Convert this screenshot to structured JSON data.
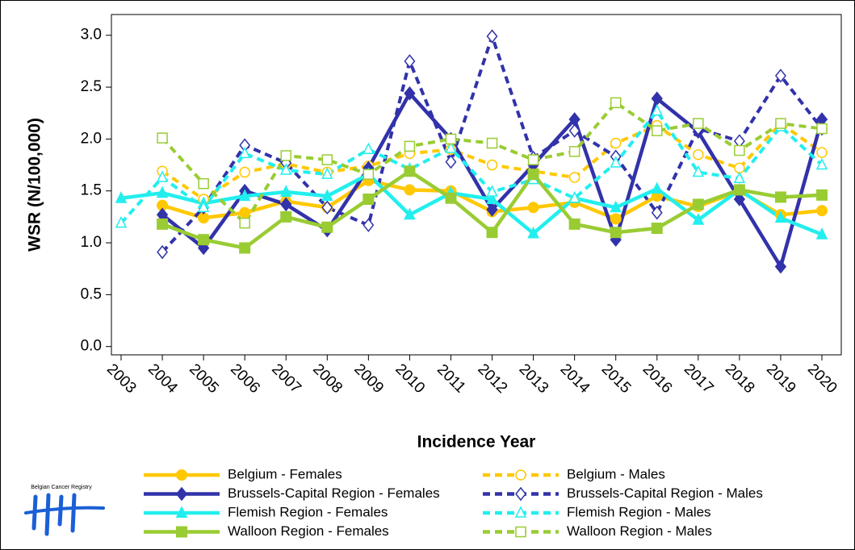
{
  "chart_data": {
    "type": "line",
    "xlabel": "Incidence Year",
    "ylabel": "WSR (N/100,000)",
    "logo_text": "Belgian Cancer Registry",
    "categories": [
      "2003",
      "2004",
      "2005",
      "2006",
      "2007",
      "2008",
      "2009",
      "2010",
      "2011",
      "2012",
      "2013",
      "2014",
      "2015",
      "2016",
      "2017",
      "2018",
      "2019",
      "2020"
    ],
    "ylim": [
      -0.08,
      3.2
    ],
    "yticks": [
      {
        "value": 0,
        "label": "0.0"
      },
      0.5,
      {
        "value": 1,
        "label": "1.0"
      },
      1.5,
      {
        "value": 2,
        "label": "2.0"
      },
      2.5,
      {
        "value": 3,
        "label": "3.0"
      }
    ],
    "grid": false,
    "series": [
      {
        "name": "Belgium - Females",
        "color": "#ffc800",
        "marker": "circle",
        "dashed": false,
        "values": [
          null,
          1.36,
          1.24,
          1.29,
          1.4,
          1.34,
          1.6,
          1.51,
          1.5,
          1.3,
          1.34,
          1.39,
          1.23,
          1.45,
          1.35,
          1.5,
          1.27,
          1.31
        ]
      },
      {
        "name": "Belgium - Males",
        "color": "#ffc800",
        "marker": "circle",
        "dashed": true,
        "values": [
          null,
          1.69,
          1.42,
          1.68,
          1.76,
          1.68,
          1.74,
          1.86,
          1.9,
          1.75,
          1.69,
          1.63,
          1.96,
          2.13,
          1.85,
          1.72,
          2.15,
          1.87
        ]
      },
      {
        "name": "Brussels-Capital Region - Females",
        "color": "#3232aa",
        "marker": "diamond",
        "dashed": false,
        "values": [
          null,
          1.27,
          0.95,
          1.5,
          1.37,
          1.12,
          1.72,
          2.44,
          2.0,
          1.32,
          1.75,
          2.19,
          1.03,
          2.39,
          2.07,
          1.42,
          0.77,
          2.19
        ]
      },
      {
        "name": "Brussels-Capital Region - Males",
        "color": "#3232aa",
        "marker": "diamond",
        "dashed": true,
        "values": [
          null,
          0.91,
          1.34,
          1.94,
          1.77,
          1.34,
          1.17,
          2.75,
          1.78,
          2.99,
          1.82,
          2.08,
          1.83,
          1.29,
          2.1,
          1.98,
          2.61,
          2.1
        ]
      },
      {
        "name": "Flemish Region - Females",
        "color": "#22eeee",
        "marker": "triangle",
        "dashed": false,
        "values": [
          1.43,
          1.48,
          1.38,
          1.45,
          1.49,
          1.45,
          1.66,
          1.27,
          1.48,
          1.42,
          1.09,
          1.43,
          1.34,
          1.52,
          1.22,
          1.51,
          1.24,
          1.08
        ]
      },
      {
        "name": "Flemish Region - Males",
        "color": "#22eeee",
        "marker": "triangle",
        "dashed": true,
        "values": [
          1.19,
          1.63,
          1.34,
          1.86,
          1.7,
          1.66,
          1.9,
          1.71,
          1.91,
          1.49,
          1.61,
          1.43,
          1.77,
          2.27,
          1.68,
          1.62,
          2.12,
          1.75
        ]
      },
      {
        "name": "Walloon Region - Females",
        "color": "#99cc33",
        "marker": "square",
        "dashed": false,
        "values": [
          null,
          1.18,
          1.03,
          0.95,
          1.25,
          1.15,
          1.42,
          1.69,
          1.43,
          1.1,
          1.66,
          1.18,
          1.1,
          1.14,
          1.37,
          1.51,
          1.44,
          1.46
        ]
      },
      {
        "name": "Walloon Region - Males",
        "color": "#99cc33",
        "marker": "square",
        "dashed": true,
        "values": [
          null,
          2.01,
          1.57,
          1.19,
          1.84,
          1.8,
          1.66,
          1.93,
          2.0,
          1.96,
          1.8,
          1.88,
          2.35,
          2.08,
          2.15,
          1.89,
          2.15,
          2.1
        ]
      }
    ]
  }
}
